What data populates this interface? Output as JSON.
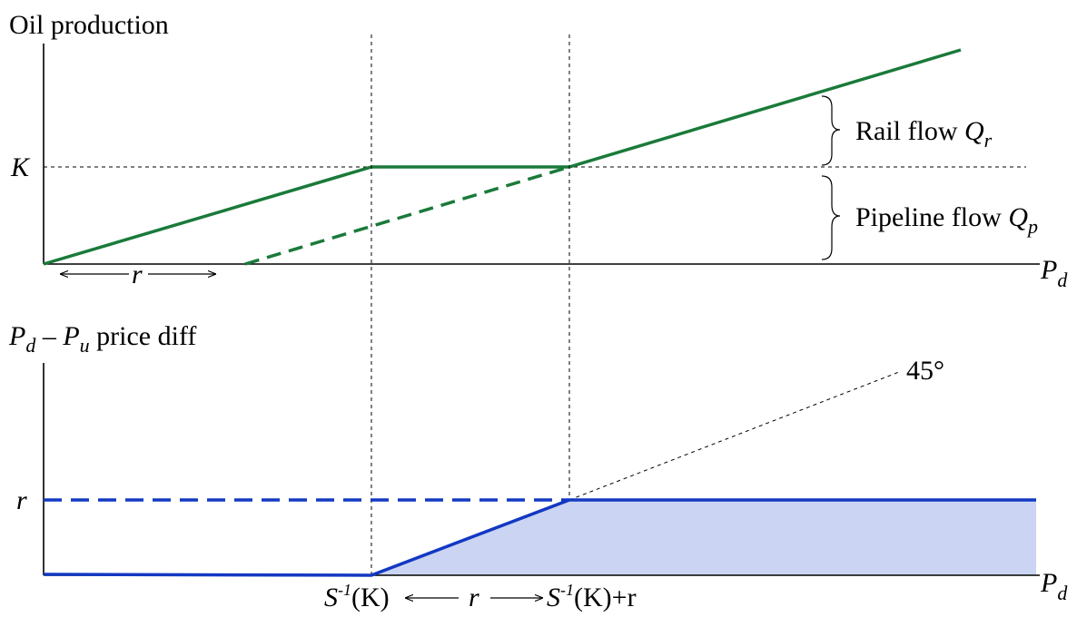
{
  "top_panel": {
    "y_axis_title": "Oil production",
    "y_tick_K": "K",
    "x_axis_label_main": "P",
    "x_axis_label_sub": "d",
    "r_span_label": "r",
    "rail_flow_text": "Rail flow ",
    "rail_flow_symbol": "Q",
    "rail_flow_sub": "r",
    "pipeline_flow_text": "Pipeline flow ",
    "pipeline_flow_symbol": "Q",
    "pipeline_flow_sub": "p",
    "line_color": "#1a7a3a"
  },
  "bottom_panel": {
    "y_axis_title_p1": "P",
    "y_axis_title_s1": "d",
    "y_axis_title_minus": " – ",
    "y_axis_title_p2": "P",
    "y_axis_title_s2": "u",
    "y_axis_title_rest": " price diff",
    "y_tick_r": "r",
    "x_axis_label_main": "P",
    "x_axis_label_sub": "d",
    "angle_label": "45°",
    "x_left_S": "S",
    "x_left_sup": "-1",
    "x_left_rest": "(K)",
    "x_mid_r": "r",
    "x_right_S": "S",
    "x_right_sup": "-1",
    "x_right_rest": "(K)+r",
    "line_color": "#1338c2",
    "fill_color": "#cbd5f3"
  }
}
